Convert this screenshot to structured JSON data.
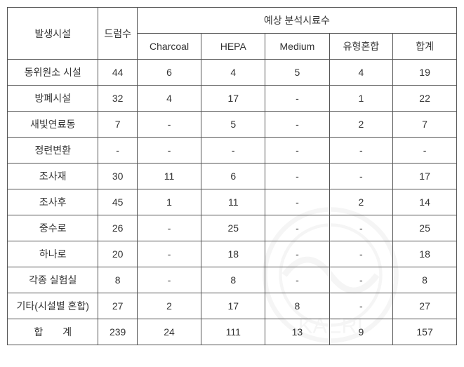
{
  "header": {
    "facility": "발생시설",
    "drum": "드럼수",
    "expected": "예상 분석시료수",
    "sub": [
      "Charcoal",
      "HEPA",
      "Medium",
      "유형혼합",
      "합계"
    ]
  },
  "rows": [
    {
      "facility": "동위원소 시설",
      "drum": "44",
      "v": [
        "6",
        "4",
        "5",
        "4",
        "19"
      ]
    },
    {
      "facility": "방폐시설",
      "drum": "32",
      "v": [
        "4",
        "17",
        "-",
        "1",
        "22"
      ]
    },
    {
      "facility": "새빛연료동",
      "drum": "7",
      "v": [
        "-",
        "5",
        "-",
        "2",
        "7"
      ]
    },
    {
      "facility": "정련변환",
      "drum": "-",
      "v": [
        "-",
        "-",
        "-",
        "-",
        "-"
      ]
    },
    {
      "facility": "조사재",
      "drum": "30",
      "v": [
        "11",
        "6",
        "-",
        "-",
        "17"
      ]
    },
    {
      "facility": "조사후",
      "drum": "45",
      "v": [
        "1",
        "11",
        "-",
        "2",
        "14"
      ]
    },
    {
      "facility": "중수로",
      "drum": "26",
      "v": [
        "-",
        "25",
        "-",
        "-",
        "25"
      ]
    },
    {
      "facility": "하나로",
      "drum": "20",
      "v": [
        "-",
        "18",
        "-",
        "-",
        "18"
      ]
    },
    {
      "facility": "각종 실험실",
      "drum": "8",
      "v": [
        "-",
        "8",
        "-",
        "-",
        "8"
      ]
    },
    {
      "facility": "기타(시설별 혼합)",
      "drum": "27",
      "v": [
        "2",
        "17",
        "8",
        "-",
        "27"
      ]
    },
    {
      "facility": "합　　계",
      "drum": "239",
      "v": [
        "24",
        "111",
        "13",
        "9",
        "157"
      ]
    }
  ]
}
